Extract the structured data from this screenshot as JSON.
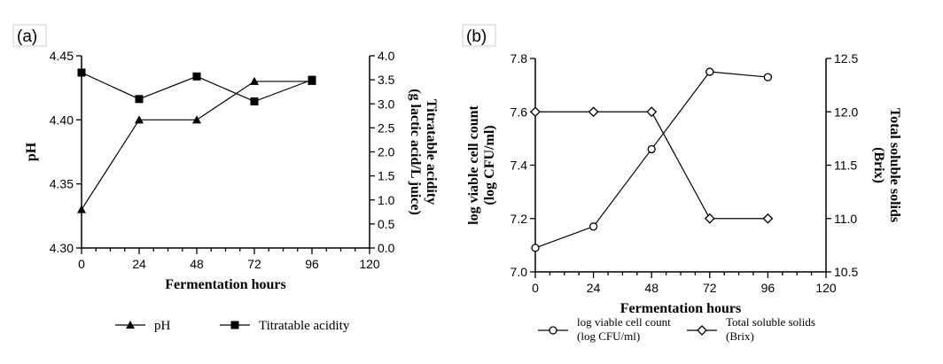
{
  "chart_data": [
    {
      "panel_label": "(a)",
      "type": "line",
      "xlabel": "Fermentation hours",
      "ylabel_left": "pH",
      "ylabel_right": [
        "Titratable acidity",
        "(g lactic acid/L juice)"
      ],
      "x_ticks": [
        "0",
        "24",
        "48",
        "72",
        "96",
        "120"
      ],
      "y_left_ticks": [
        "4.30",
        "4.35",
        "4.40",
        "4.45"
      ],
      "y_right_ticks": [
        "0.0",
        "0.5",
        "1.0",
        "1.5",
        "2.0",
        "2.5",
        "3.0",
        "3.5",
        "4.0"
      ],
      "xlim": [
        0,
        120
      ],
      "ylim_left": [
        4.3,
        4.45
      ],
      "ylim_right": [
        0,
        4.0
      ],
      "series": [
        {
          "name": "pH",
          "axis": "left",
          "marker": "triangle",
          "x": [
            0,
            24,
            48,
            72,
            96
          ],
          "values": [
            4.33,
            4.4,
            4.4,
            4.43,
            4.43
          ]
        },
        {
          "name": "Titratable acidity",
          "axis": "right",
          "marker": "square",
          "x": [
            0,
            24,
            48,
            72,
            96
          ],
          "values": [
            3.65,
            3.1,
            3.57,
            3.05,
            3.5
          ]
        }
      ],
      "grid": false,
      "legend_position": "bottom"
    },
    {
      "panel_label": "(b)",
      "type": "line",
      "xlabel": "Fermentation hours",
      "ylabel_left": [
        "log viable cell count",
        "(log CFU/ml)"
      ],
      "ylabel_right": [
        "Total soluble solids",
        "(Brix)"
      ],
      "x_ticks": [
        "0",
        "24",
        "48",
        "72",
        "96",
        "120"
      ],
      "y_left_ticks": [
        "7.0",
        "7.2",
        "7.4",
        "7.6",
        "7.8"
      ],
      "y_right_ticks": [
        "10.5",
        "11.0",
        "11.5",
        "12.0",
        "12.5"
      ],
      "xlim": [
        0,
        120
      ],
      "ylim_left": [
        7.0,
        7.8
      ],
      "ylim_right": [
        10.5,
        12.5
      ],
      "series": [
        {
          "name": [
            "log viable cell count",
            "(log CFU/ml)"
          ],
          "axis": "left",
          "marker": "circle-open",
          "x": [
            0,
            24,
            48,
            72,
            96
          ],
          "values": [
            7.09,
            7.17,
            7.46,
            7.75,
            7.73
          ]
        },
        {
          "name": [
            "Total soluble solids",
            "(Brix)"
          ],
          "axis": "right",
          "marker": "diamond-open",
          "x": [
            0,
            24,
            48,
            72,
            96
          ],
          "values": [
            12.0,
            12.0,
            12.0,
            11.0,
            11.0
          ]
        }
      ],
      "grid": false,
      "legend_position": "bottom"
    }
  ]
}
